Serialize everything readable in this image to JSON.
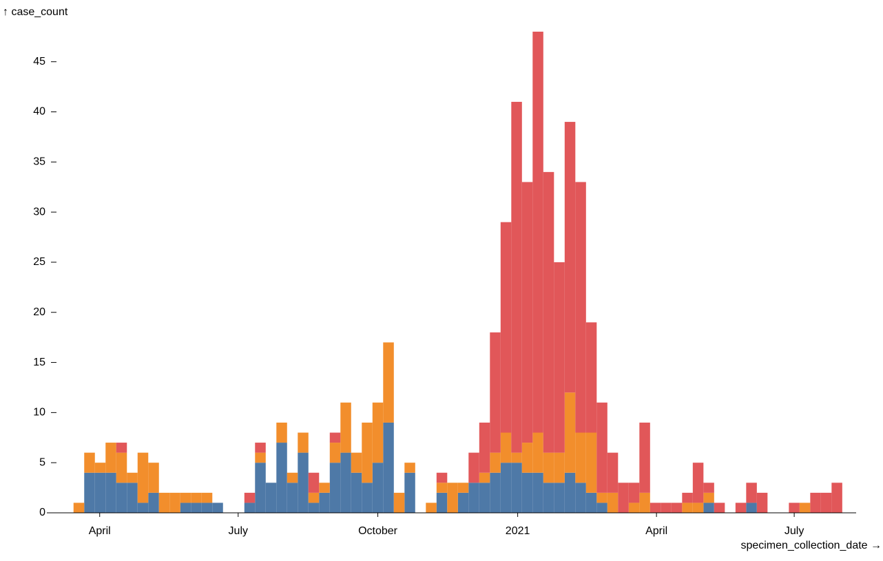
{
  "chart_data": {
    "type": "histogram",
    "y_label": "↑ case_count",
    "x_label": "specimen_collection_date →",
    "bins": [
      0,
      1,
      2,
      3,
      4,
      5,
      6,
      7,
      8,
      9,
      10,
      11,
      12,
      13,
      14,
      15,
      16,
      17,
      18,
      19,
      20,
      21,
      22,
      23,
      24,
      25,
      26,
      27,
      28,
      29,
      30,
      31,
      32,
      33,
      34,
      35,
      36,
      37,
      38,
      39,
      40,
      41,
      42,
      43,
      44,
      45,
      46,
      47,
      48,
      49,
      50,
      51,
      52,
      53,
      54,
      55,
      56,
      57,
      58,
      59,
      60,
      61,
      62,
      63,
      64,
      65,
      66,
      67,
      68,
      69,
      70,
      71,
      72
    ],
    "series": [
      {
        "color": "#4e79a7",
        "values": [
          0,
          4,
          4,
          4,
          3,
          3,
          1,
          2,
          0,
          0,
          1,
          1,
          1,
          1,
          0,
          0,
          1,
          5,
          3,
          7,
          3,
          6,
          1,
          2,
          5,
          6,
          4,
          3,
          5,
          9,
          0,
          4,
          0,
          0,
          2,
          0,
          2,
          3,
          3,
          4,
          5,
          5,
          4,
          4,
          3,
          3,
          4,
          3,
          2,
          1,
          0,
          0,
          0,
          0,
          0,
          0,
          0,
          0,
          0,
          1,
          0,
          0,
          0,
          1,
          0,
          0,
          0,
          0,
          0,
          0,
          0,
          0
        ]
      },
      {
        "color": "#f28e2c",
        "values": [
          1,
          2,
          1,
          3,
          3,
          1,
          5,
          3,
          2,
          2,
          1,
          1,
          1,
          0,
          0,
          0,
          0,
          1,
          0,
          2,
          1,
          2,
          1,
          1,
          2,
          5,
          2,
          6,
          6,
          8,
          2,
          1,
          0,
          1,
          1,
          3,
          1,
          0,
          1,
          2,
          3,
          1,
          3,
          4,
          3,
          3,
          8,
          5,
          6,
          1,
          2,
          0,
          1,
          2,
          0,
          0,
          0,
          1,
          1,
          1,
          0,
          0,
          0,
          0,
          0,
          0,
          0,
          0,
          1,
          0,
          0,
          0
        ]
      },
      {
        "color": "#e15759",
        "values": [
          0,
          0,
          0,
          0,
          1,
          0,
          0,
          0,
          0,
          0,
          0,
          0,
          0,
          0,
          0,
          0,
          1,
          1,
          0,
          0,
          0,
          0,
          2,
          0,
          1,
          0,
          0,
          0,
          0,
          0,
          0,
          0,
          0,
          0,
          1,
          0,
          0,
          3,
          5,
          12,
          21,
          35,
          26,
          40,
          28,
          19,
          27,
          25,
          11,
          9,
          4,
          3,
          2,
          7,
          1,
          1,
          1,
          1,
          4,
          1,
          1,
          0,
          1,
          2,
          2,
          0,
          0,
          1,
          0,
          2,
          2,
          3
        ]
      }
    ],
    "xlim": [
      -2.5,
      73.3
    ],
    "xticks": [
      {
        "value": 2.45,
        "label": "April"
      },
      {
        "value": 15.42,
        "label": "July"
      },
      {
        "value": 28.5,
        "label": "October"
      },
      {
        "value": 41.6,
        "label": "2021"
      },
      {
        "value": 54.6,
        "label": "April"
      },
      {
        "value": 67.5,
        "label": "July"
      }
    ],
    "ylim": [
      0,
      48
    ],
    "yticks": [
      0,
      5,
      10,
      15,
      20,
      25,
      30,
      35,
      40,
      45
    ]
  }
}
